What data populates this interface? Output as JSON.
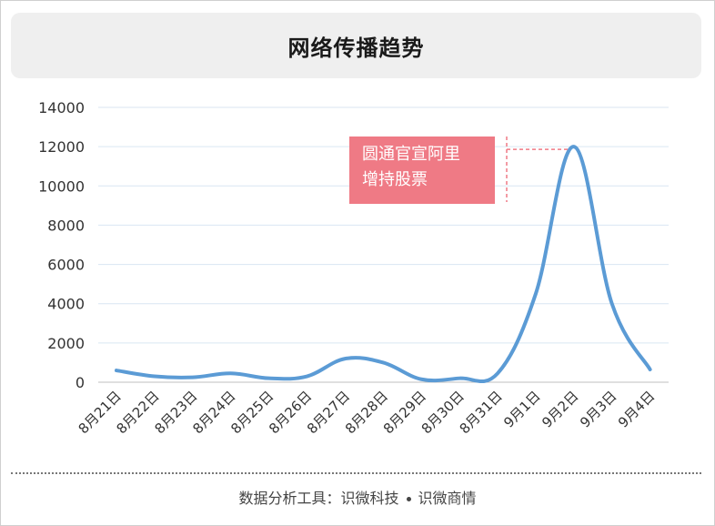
{
  "title": "网络传播趋势",
  "footer": {
    "left": "数据分析工具：识微科技",
    "right": "识微商情"
  },
  "colors": {
    "line": "#5b9bd5",
    "annotation_bg": "#ef7a85",
    "grid": "#d9e6f2"
  },
  "chart_data": {
    "type": "line",
    "title": "网络传播趋势",
    "categories": [
      "8月21日",
      "8月22日",
      "8月23日",
      "8月24日",
      "8月25日",
      "8月26日",
      "8月27日",
      "8月28日",
      "8月29日",
      "8月30日",
      "8月31日",
      "9月1日",
      "9月2日",
      "9月3日",
      "9月4日"
    ],
    "series": [
      {
        "values": [
          600,
          300,
          250,
          450,
          200,
          300,
          1200,
          1000,
          150,
          200,
          450,
          4500,
          12000,
          4000,
          650
        ]
      }
    ],
    "yticks": [
      "0",
      "2000",
      "4000",
      "6000",
      "8000",
      "10000",
      "12000",
      "14000"
    ],
    "ylim": [
      0,
      14000
    ],
    "grid": true,
    "xlabel": "",
    "ylabel": "",
    "annotation": {
      "lines": [
        "圆通官宣阿里",
        "增持股票"
      ],
      "target_category": "9月2日"
    }
  }
}
